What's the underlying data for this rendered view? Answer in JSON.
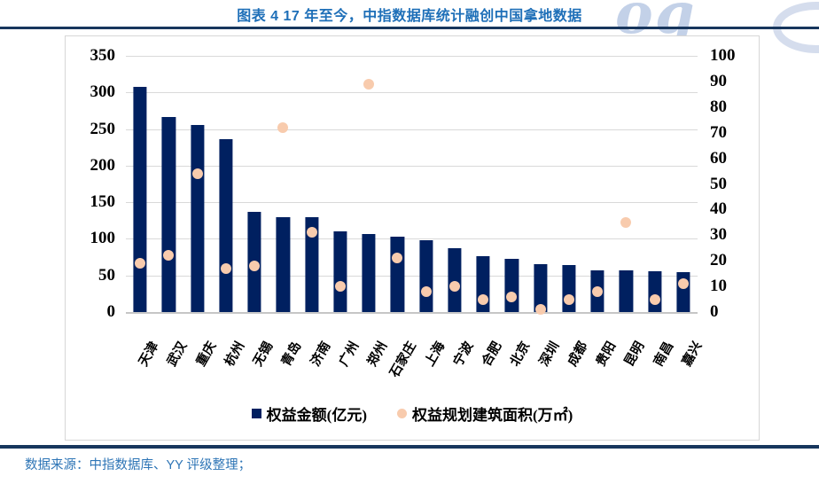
{
  "page": {
    "title": "图表 4 17 年至今，中指数据库统计融创中国拿地数据",
    "source_note": "数据来源：中指数据库、YY 评级整理；",
    "watermark": "og"
  },
  "colors": {
    "bar": "#002060",
    "dot": "#f8cbad",
    "title_blue": "#1e6fb8",
    "source_blue": "#2e75b6",
    "rule_navy": "#17365d",
    "gridline": "#d9d9d9"
  },
  "chart_data": {
    "type": "bar",
    "subtype": "combo-bar-scatter",
    "title": "图表 4 17 年至今，中指数据库统计融创中国拿地数据",
    "grid": true,
    "legend_position": "bottom",
    "categories": [
      "天津",
      "武汉",
      "重庆",
      "杭州",
      "无锡",
      "青岛",
      "济南",
      "广州",
      "郑州",
      "石家庄",
      "上海",
      "宁波",
      "合肥",
      "北京",
      "深圳",
      "成都",
      "贵阳",
      "昆明",
      "南昌",
      "嘉兴"
    ],
    "series": [
      {
        "name": "权益金额(亿元)",
        "type": "bar",
        "axis": "left",
        "color": "#002060",
        "values": [
          308,
          266,
          256,
          236,
          137,
          130,
          130,
          110,
          107,
          103,
          98,
          87,
          76,
          73,
          65,
          64,
          57,
          57,
          56,
          55
        ]
      },
      {
        "name": "权益规划建筑面积(万㎡)",
        "type": "scatter",
        "axis": "right",
        "color": "#f8cbad",
        "values": [
          19,
          22,
          54,
          17,
          18,
          72,
          31,
          10,
          89,
          21,
          8,
          10,
          5,
          6,
          1,
          5,
          8,
          35,
          5,
          11
        ]
      }
    ],
    "left_axis": {
      "min": 0,
      "max": 350,
      "step": 50,
      "ticks": [
        350,
        300,
        250,
        200,
        150,
        100,
        50,
        0
      ]
    },
    "right_axis": {
      "min": 0,
      "max": 100,
      "step": 10,
      "ticks": [
        100,
        90,
        80,
        70,
        60,
        50,
        40,
        30,
        20,
        10,
        0
      ]
    }
  }
}
